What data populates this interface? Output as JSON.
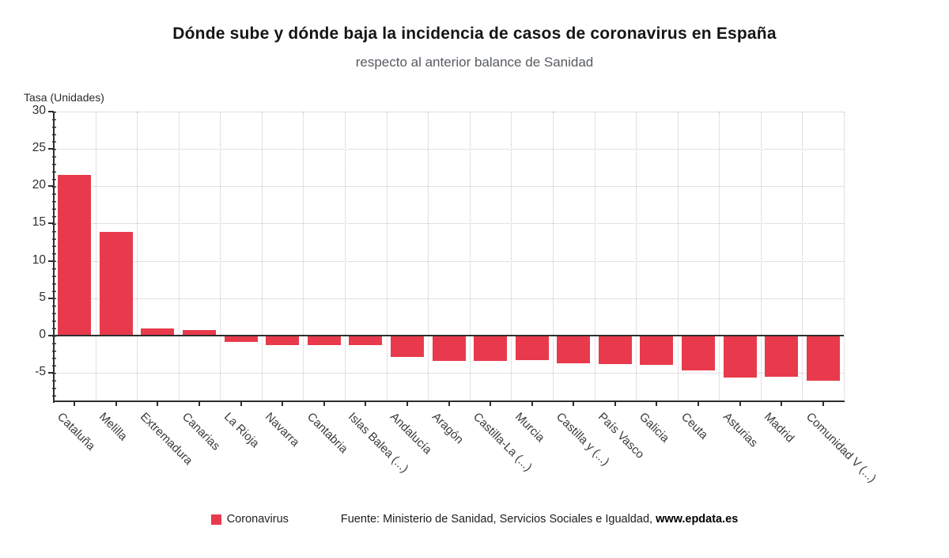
{
  "chart_data": {
    "type": "bar",
    "title": "Dónde sube y dónde baja la incidencia de casos de coronavirus en España",
    "subtitle": "respecto al anterior balance de Sanidad",
    "ylabel": "Tasa (Unidades)",
    "xlabel": "",
    "series_name": "Coronavirus",
    "categories": [
      "Cataluña",
      "Melilla",
      "Extremadura",
      "Canarias",
      "La Rioja",
      "Navarra",
      "Cantabria",
      "Islas Balea (...)",
      "Andalucía",
      "Aragón",
      "Castilla-La (...)",
      "Murcia",
      "Castilla y (...)",
      "País Vasco",
      "Galicia",
      "Ceuta",
      "Asturias",
      "Madrid",
      "Comunidad V (...)"
    ],
    "values": [
      21.5,
      13.9,
      1.0,
      0.7,
      -0.9,
      -1.3,
      -1.3,
      -1.3,
      -2.9,
      -3.4,
      -3.4,
      -3.3,
      -3.7,
      -3.8,
      -3.9,
      -4.7,
      -5.6,
      -5.5,
      -6.0
    ],
    "yticks": [
      30,
      25,
      20,
      15,
      10,
      5,
      0,
      -5
    ],
    "ylim": [
      -8.8,
      30
    ],
    "grid": true,
    "legend_position": "bottom",
    "bar_color": "#e83a4c",
    "axis_color": "#2e2e2e",
    "grid_color": "#c5c5c5"
  },
  "footer": {
    "legend_label": "Coronavirus",
    "source_prefix": "Fuente: Ministerio de Sanidad, Servicios Sociales e Igualdad, ",
    "source_link": "www.epdata.es"
  }
}
